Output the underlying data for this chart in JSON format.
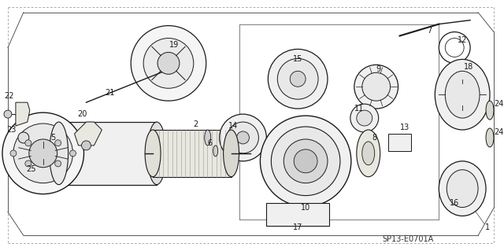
{
  "bg_color": "#ffffff",
  "line_color": "#1a1a1a",
  "diagram_ref": "SP13-E0701A",
  "fig_width": 6.4,
  "fig_height": 3.19,
  "dpi": 100
}
